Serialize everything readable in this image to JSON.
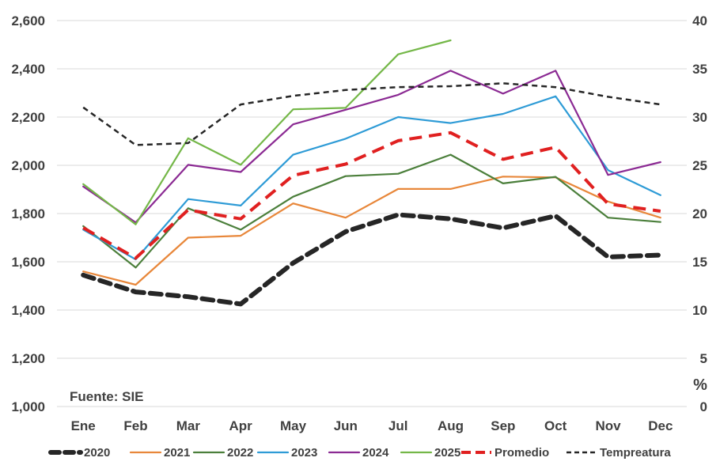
{
  "chart_data": {
    "type": "line",
    "title": "",
    "categories": [
      "Ene",
      "Feb",
      "Mar",
      "Apr",
      "May",
      "Jun",
      "Jul",
      "Aug",
      "Sep",
      "Oct",
      "Nov",
      "Dec"
    ],
    "y_left": {
      "min": 1000,
      "max": 2600,
      "ticks": [
        "1,000",
        "1,200",
        "1,400",
        "1,600",
        "1,800",
        "2,000",
        "2,200",
        "2,400",
        "2,600"
      ],
      "tick_values": [
        1000,
        1200,
        1400,
        1600,
        1800,
        2000,
        2200,
        2400,
        2600
      ]
    },
    "y_right": {
      "min": 0,
      "max": 40,
      "ticks": [
        "0",
        "5",
        "10",
        "15",
        "20",
        "25",
        "30",
        "35",
        "40"
      ],
      "tick_values": [
        0,
        5,
        10,
        15,
        20,
        25,
        30,
        35,
        40
      ],
      "unit": "%"
    },
    "source": "Fuente: SIE",
    "grid": true,
    "legend_position": "bottom",
    "series": [
      {
        "name": "2020",
        "color": "#262626",
        "style": "bold-dash",
        "axis": "left",
        "values": [
          1545,
          1475,
          1455,
          1425,
          1595,
          1725,
          1795,
          1778,
          1740,
          1790,
          1620,
          1628
        ]
      },
      {
        "name": "2021",
        "color": "#E8873A",
        "style": "solid",
        "axis": "left",
        "values": [
          1560,
          1505,
          1700,
          1708,
          1842,
          1783,
          1902,
          1902,
          1953,
          1950,
          1850,
          1783
        ]
      },
      {
        "name": "2022",
        "color": "#4B7F3B",
        "style": "solid",
        "axis": "left",
        "values": [
          1748,
          1576,
          1822,
          1733,
          1870,
          1955,
          1965,
          2044,
          1925,
          1952,
          1783,
          1765
        ]
      },
      {
        "name": "2023",
        "color": "#2E9BD6",
        "style": "solid",
        "axis": "left",
        "values": [
          1733,
          1610,
          1860,
          1833,
          2044,
          2110,
          2200,
          2175,
          2213,
          2286,
          1980,
          1876
        ]
      },
      {
        "name": "2024",
        "color": "#8B2A93",
        "style": "solid",
        "axis": "left",
        "values": [
          1912,
          1763,
          2002,
          1972,
          2170,
          2230,
          2292,
          2392,
          2297,
          2392,
          1960,
          2013
        ]
      },
      {
        "name": "2025",
        "color": "#74B748",
        "style": "solid",
        "axis": "left",
        "values": [
          1922,
          1755,
          2112,
          2002,
          2232,
          2238,
          2460,
          2518,
          null,
          null,
          null,
          null
        ]
      },
      {
        "name": "Promedio",
        "color": "#E02020",
        "style": "dash",
        "axis": "left",
        "values": [
          1741,
          1615,
          1815,
          1778,
          1958,
          2005,
          2102,
          2135,
          2025,
          2075,
          1840,
          1810
        ]
      },
      {
        "name": "Tempreatura",
        "color": "#262626",
        "style": "thin-dash",
        "axis": "right",
        "values": [
          31.0,
          27.1,
          27.3,
          31.3,
          32.2,
          32.8,
          33.1,
          33.2,
          33.5,
          33.1,
          32.1,
          31.3
        ]
      }
    ]
  }
}
